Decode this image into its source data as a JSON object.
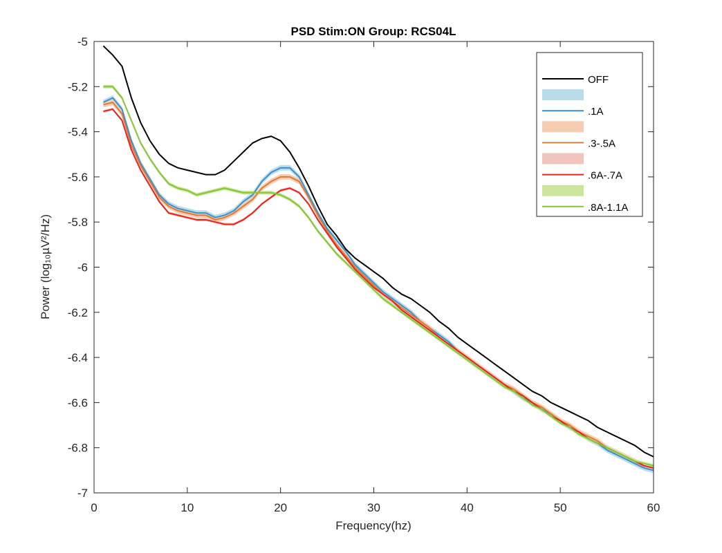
{
  "chart_data": {
    "type": "line",
    "title": "PSD Stim:ON Group: RCS04L",
    "xlabel": "Frequency(hz)",
    "ylabel": "Power (log₁₀µV²/Hz)",
    "xlim": [
      0,
      60
    ],
    "ylim": [
      -7,
      -5
    ],
    "xticks": [
      0,
      10,
      20,
      30,
      40,
      50,
      60
    ],
    "xtick_labels": [
      "0",
      "10",
      "20",
      "30",
      "40",
      "50",
      "60"
    ],
    "yticks": [
      -5,
      -5.2,
      -5.4,
      -5.6,
      -5.8,
      -6,
      -6.2,
      -6.4,
      -6.6,
      -6.8,
      -7
    ],
    "ytick_labels": [
      "-5",
      "-5.2",
      "-5.4",
      "-5.6",
      "-5.8",
      "-6",
      "-6.2",
      "-6.4",
      "-6.6",
      "-6.8",
      "-7"
    ],
    "grid": false,
    "legend_position": "top-right",
    "legend_entries": [
      {
        "kind": "line",
        "label": "OFF",
        "color": "#000000"
      },
      {
        "kind": "patch",
        "label": "",
        "color": "#b9dcec"
      },
      {
        "kind": "line",
        "label": ".1A",
        "color": "#3b8fca"
      },
      {
        "kind": "patch",
        "label": "",
        "color": "#f6cdb0"
      },
      {
        "kind": "line",
        "label": ".3-.5A",
        "color": "#dc7a3a"
      },
      {
        "kind": "patch",
        "label": "",
        "color": "#efc5bd"
      },
      {
        "kind": "line",
        "label": ".6A-.7A",
        "color": "#e5221c"
      },
      {
        "kind": "patch",
        "label": "",
        "color": "#cbe59c"
      },
      {
        "kind": "line",
        "label": ".8A-1.1A",
        "color": "#86c53a"
      }
    ],
    "x": [
      1,
      2,
      3,
      4,
      5,
      6,
      7,
      8,
      9,
      10,
      11,
      12,
      13,
      14,
      15,
      16,
      17,
      18,
      19,
      20,
      21,
      22,
      23,
      24,
      25,
      26,
      27,
      28,
      29,
      30,
      31,
      32,
      33,
      34,
      35,
      36,
      37,
      38,
      39,
      40,
      41,
      42,
      43,
      44,
      45,
      46,
      47,
      48,
      49,
      50,
      51,
      52,
      53,
      54,
      55,
      56,
      57,
      58,
      59,
      60
    ],
    "series": [
      {
        "name": "OFF",
        "color": "#000000",
        "band": 0,
        "band_color": "",
        "values": [
          -5.02,
          -5.06,
          -5.11,
          -5.25,
          -5.36,
          -5.44,
          -5.5,
          -5.54,
          -5.56,
          -5.57,
          -5.58,
          -5.59,
          -5.59,
          -5.57,
          -5.53,
          -5.49,
          -5.45,
          -5.43,
          -5.42,
          -5.44,
          -5.49,
          -5.56,
          -5.64,
          -5.73,
          -5.81,
          -5.86,
          -5.92,
          -5.96,
          -5.99,
          -6.02,
          -6.05,
          -6.09,
          -6.12,
          -6.14,
          -6.17,
          -6.2,
          -6.24,
          -6.27,
          -6.31,
          -6.34,
          -6.37,
          -6.4,
          -6.43,
          -6.46,
          -6.49,
          -6.52,
          -6.55,
          -6.57,
          -6.6,
          -6.62,
          -6.64,
          -6.66,
          -6.68,
          -6.71,
          -6.73,
          -6.75,
          -6.77,
          -6.79,
          -6.82,
          -6.84
        ]
      },
      {
        "name": ".1A",
        "color": "#3b8fca",
        "band": 0.012,
        "band_color": "#b9dcec",
        "values": [
          -5.27,
          -5.25,
          -5.3,
          -5.44,
          -5.54,
          -5.61,
          -5.68,
          -5.72,
          -5.74,
          -5.75,
          -5.76,
          -5.76,
          -5.78,
          -5.77,
          -5.75,
          -5.71,
          -5.68,
          -5.62,
          -5.58,
          -5.56,
          -5.56,
          -5.6,
          -5.68,
          -5.76,
          -5.83,
          -5.88,
          -5.93,
          -5.99,
          -6.03,
          -6.07,
          -6.11,
          -6.14,
          -6.17,
          -6.2,
          -6.24,
          -6.27,
          -6.3,
          -6.33,
          -6.37,
          -6.4,
          -6.43,
          -6.46,
          -6.49,
          -6.52,
          -6.55,
          -6.58,
          -6.6,
          -6.63,
          -6.65,
          -6.68,
          -6.71,
          -6.73,
          -6.76,
          -6.78,
          -6.81,
          -6.83,
          -6.85,
          -6.87,
          -6.89,
          -6.9
        ]
      },
      {
        "name": ".3-.5A",
        "color": "#dc7a3a",
        "band": 0.012,
        "band_color": "#f6cdb0",
        "values": [
          -5.28,
          -5.27,
          -5.32,
          -5.46,
          -5.55,
          -5.62,
          -5.69,
          -5.73,
          -5.75,
          -5.76,
          -5.77,
          -5.77,
          -5.79,
          -5.78,
          -5.76,
          -5.73,
          -5.7,
          -5.65,
          -5.62,
          -5.6,
          -5.6,
          -5.62,
          -5.69,
          -5.77,
          -5.84,
          -5.9,
          -5.95,
          -6.0,
          -6.04,
          -6.08,
          -6.12,
          -6.15,
          -6.18,
          -6.21,
          -6.24,
          -6.27,
          -6.31,
          -6.34,
          -6.37,
          -6.4,
          -6.43,
          -6.46,
          -6.49,
          -6.52,
          -6.54,
          -6.57,
          -6.6,
          -6.62,
          -6.65,
          -6.68,
          -6.7,
          -6.73,
          -6.75,
          -6.77,
          -6.8,
          -6.82,
          -6.84,
          -6.86,
          -6.88,
          -6.89
        ]
      },
      {
        "name": ".6A-.7A",
        "color": "#e5221c",
        "band": 0.006,
        "band_color": "#efc5bd",
        "values": [
          -5.31,
          -5.3,
          -5.35,
          -5.48,
          -5.57,
          -5.64,
          -5.71,
          -5.76,
          -5.77,
          -5.78,
          -5.79,
          -5.79,
          -5.8,
          -5.81,
          -5.81,
          -5.79,
          -5.76,
          -5.72,
          -5.69,
          -5.66,
          -5.65,
          -5.67,
          -5.72,
          -5.79,
          -5.85,
          -5.91,
          -5.96,
          -6.01,
          -6.05,
          -6.09,
          -6.12,
          -6.15,
          -6.19,
          -6.22,
          -6.25,
          -6.28,
          -6.31,
          -6.34,
          -6.37,
          -6.4,
          -6.43,
          -6.46,
          -6.49,
          -6.52,
          -6.55,
          -6.57,
          -6.6,
          -6.63,
          -6.66,
          -6.68,
          -6.71,
          -6.73,
          -6.76,
          -6.78,
          -6.8,
          -6.82,
          -6.84,
          -6.86,
          -6.88,
          -6.89
        ]
      },
      {
        "name": ".8A-1.1A",
        "color": "#86c53a",
        "band": 0.008,
        "band_color": "#cbe59c",
        "values": [
          -5.2,
          -5.2,
          -5.25,
          -5.35,
          -5.45,
          -5.52,
          -5.58,
          -5.63,
          -5.65,
          -5.66,
          -5.68,
          -5.67,
          -5.66,
          -5.65,
          -5.66,
          -5.67,
          -5.67,
          -5.67,
          -5.67,
          -5.68,
          -5.7,
          -5.73,
          -5.78,
          -5.84,
          -5.89,
          -5.94,
          -5.98,
          -6.02,
          -6.06,
          -6.1,
          -6.14,
          -6.17,
          -6.2,
          -6.23,
          -6.26,
          -6.29,
          -6.32,
          -6.35,
          -6.38,
          -6.41,
          -6.44,
          -6.47,
          -6.5,
          -6.53,
          -6.55,
          -6.58,
          -6.61,
          -6.63,
          -6.66,
          -6.69,
          -6.71,
          -6.74,
          -6.76,
          -6.78,
          -6.8,
          -6.82,
          -6.84,
          -6.86,
          -6.87,
          -6.88
        ]
      }
    ]
  }
}
